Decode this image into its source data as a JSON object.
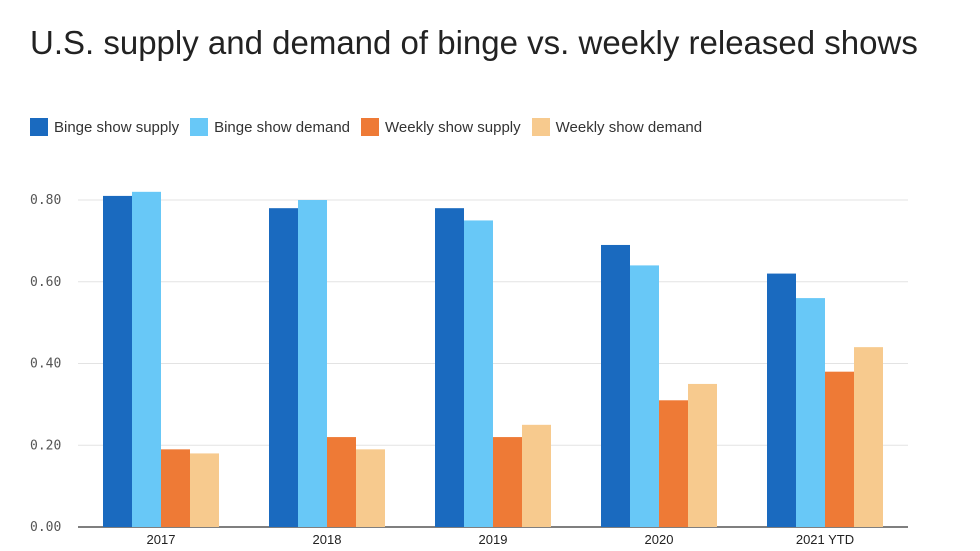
{
  "chart_data": {
    "type": "bar",
    "title": "U.S. supply and demand of binge vs. weekly released shows",
    "categories": [
      "2017",
      "2018",
      "2019",
      "2020",
      "2021 YTD"
    ],
    "series": [
      {
        "name": "Binge show supply",
        "color": "#1a6abf",
        "values": [
          0.81,
          0.78,
          0.78,
          0.69,
          0.62
        ]
      },
      {
        "name": "Binge show demand",
        "color": "#68c8f7",
        "values": [
          0.82,
          0.8,
          0.75,
          0.64,
          0.56
        ]
      },
      {
        "name": "Weekly show supply",
        "color": "#ee7a36",
        "values": [
          0.19,
          0.22,
          0.22,
          0.31,
          0.38
        ]
      },
      {
        "name": "Weekly show demand",
        "color": "#f7ca8e",
        "values": [
          0.18,
          0.19,
          0.25,
          0.35,
          0.44
        ]
      }
    ],
    "ylim": [
      0,
      0.8
    ],
    "yticks": [
      "0.00",
      "0.20",
      "0.40",
      "0.60",
      "0.80"
    ],
    "ytick_values": [
      0,
      0.2,
      0.4,
      0.6,
      0.8
    ],
    "grid": true,
    "legend_position": "top-left"
  }
}
